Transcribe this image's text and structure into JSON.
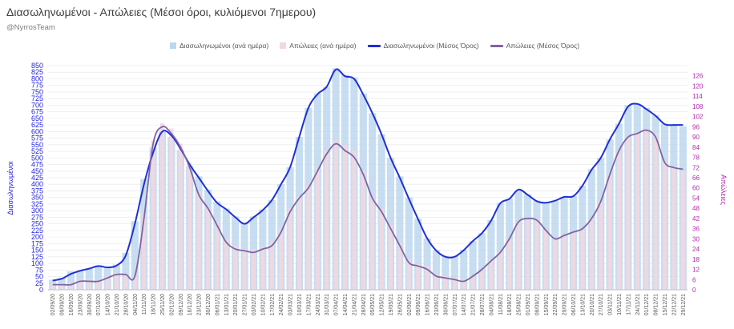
{
  "title": "Διασωληνωμένοι - Απώλειες (Μέσοι όροι, κυλιόμενοι 7ημερου)",
  "subtitle": "@NyrrosTeam",
  "colors": {
    "intubated_bar": "#bdd7ee",
    "deaths_bar": "#f2d7e0",
    "intubated_line": "#1f2fd6",
    "deaths_line": "#8064a2",
    "left_axis_text": "#1f1fe0",
    "right_axis_text": "#b02ab0"
  },
  "chart_data": {
    "type": "bar",
    "title": "Διασωληνωμένοι - Απώλειες (Μέσοι όροι, κυλιόμενοι 7ημερου)",
    "subtitle": "@NyrrosTeam",
    "ylabel_left": "Διασωληνωμένοι",
    "ylabel_right": "Απώλειες",
    "ylim_left": [
      0,
      850
    ],
    "ylim_right": [
      0,
      132
    ],
    "y_ticks_left": [
      0,
      25,
      50,
      75,
      100,
      125,
      150,
      175,
      200,
      225,
      250,
      275,
      300,
      325,
      350,
      375,
      400,
      425,
      450,
      475,
      500,
      525,
      550,
      575,
      600,
      625,
      650,
      675,
      700,
      725,
      750,
      775,
      800,
      825,
      850
    ],
    "y_ticks_right": [
      0,
      6,
      12,
      18,
      24,
      30,
      36,
      42,
      48,
      54,
      60,
      66,
      72,
      78,
      84,
      90,
      96,
      102,
      108,
      114,
      120,
      126
    ],
    "x_tick_labels": [
      "02/09/20",
      "09/09/20",
      "16/09/20",
      "23/09/20",
      "30/09/20",
      "07/10/20",
      "14/10/20",
      "21/10/20",
      "28/10/20",
      "04/11/20",
      "11/11/20",
      "18/11/20",
      "25/11/20",
      "02/12/20",
      "09/12/20",
      "16/12/20",
      "23/12/20",
      "30/12/20",
      "06/01/21",
      "13/01/21",
      "20/01/21",
      "27/01/21",
      "03/02/21",
      "10/02/21",
      "17/02/21",
      "24/02/21",
      "03/03/21",
      "10/03/21",
      "17/03/21",
      "24/03/21",
      "31/03/21",
      "07/04/21",
      "14/04/21",
      "21/04/21",
      "28/04/21",
      "05/05/21",
      "12/05/21",
      "19/05/21",
      "26/05/21",
      "02/06/21",
      "09/06/21",
      "16/06/21",
      "23/06/21",
      "30/06/21",
      "07/07/21",
      "14/07/21",
      "21/07/21",
      "28/07/21",
      "04/08/21",
      "11/08/21",
      "18/08/21",
      "25/08/21",
      "01/09/21",
      "08/09/21",
      "15/09/21",
      "22/09/21",
      "29/09/21",
      "06/10/21",
      "13/10/21",
      "20/10/21",
      "27/10/21",
      "03/11/21",
      "10/11/21",
      "17/11/21",
      "24/11/21",
      "01/12/21",
      "08/12/21",
      "15/12/21",
      "22/12/21",
      "29/12/21"
    ],
    "grid": true,
    "legend_position": "top",
    "series": [
      {
        "name": "Διασωληνωμένοι (ανά ημέρα)",
        "type": "bar",
        "axis": "left",
        "values": [
          38,
          46,
          70,
          72,
          80,
          92,
          86,
          96,
          140,
          260,
          420,
          540,
          600,
          580,
          530,
          470,
          430,
          380,
          335,
          308,
          278,
          252,
          278,
          305,
          340,
          400,
          465,
          580,
          690,
          745,
          770,
          840,
          815,
          805,
          745,
          670,
          590,
          500,
          430,
          350,
          270,
          195,
          150,
          128,
          128,
          152,
          185,
          215,
          265,
          330,
          345,
          378,
          362,
          338,
          332,
          338,
          352,
          355,
          395,
          458,
          500,
          570,
          630,
          700,
          705,
          690,
          662,
          630,
          625,
          620
        ]
      },
      {
        "name": "Απώλειες (ανά ημέρα)",
        "type": "bar",
        "axis": "right",
        "values": [
          4,
          3,
          4,
          6,
          6,
          5,
          8,
          10,
          9,
          8,
          45,
          88,
          98,
          95,
          86,
          75,
          58,
          48,
          40,
          30,
          26,
          24,
          24,
          25,
          28,
          36,
          48,
          55,
          62,
          72,
          82,
          88,
          85,
          82,
          70,
          55,
          48,
          38,
          28,
          18,
          15,
          14,
          9,
          8,
          7,
          6,
          8,
          12,
          18,
          22,
          30,
          40,
          42,
          42,
          36,
          30,
          32,
          34,
          36,
          42,
          52,
          68,
          82,
          90,
          92,
          94,
          92,
          76,
          72,
          70
        ]
      },
      {
        "name": "Διασωληνωμένοι (Μέσος Όρος)",
        "type": "line",
        "axis": "left",
        "values": [
          35,
          42,
          60,
          72,
          80,
          90,
          85,
          92,
          130,
          250,
          400,
          520,
          600,
          585,
          535,
          475,
          425,
          375,
          330,
          305,
          275,
          250,
          275,
          302,
          340,
          400,
          465,
          580,
          690,
          742,
          770,
          835,
          810,
          800,
          740,
          670,
          590,
          500,
          425,
          345,
          268,
          195,
          148,
          125,
          125,
          150,
          185,
          215,
          262,
          328,
          345,
          380,
          360,
          336,
          330,
          338,
          352,
          355,
          395,
          455,
          500,
          570,
          630,
          695,
          705,
          685,
          660,
          628,
          625,
          625
        ]
      },
      {
        "name": "Απώλειες (Μέσος Όρος)",
        "type": "line",
        "axis": "right",
        "values": [
          3,
          3,
          3,
          5,
          5,
          5,
          7,
          9,
          9,
          8,
          42,
          86,
          96,
          92,
          84,
          72,
          56,
          48,
          38,
          28,
          24,
          23,
          22,
          24,
          26,
          34,
          46,
          54,
          60,
          70,
          80,
          86,
          82,
          78,
          68,
          54,
          46,
          36,
          26,
          16,
          14,
          12,
          8,
          7,
          6,
          5,
          8,
          12,
          17,
          22,
          30,
          40,
          42,
          41,
          35,
          30,
          32,
          34,
          36,
          42,
          52,
          68,
          82,
          90,
          92,
          94,
          90,
          75,
          72,
          71
        ]
      }
    ]
  }
}
